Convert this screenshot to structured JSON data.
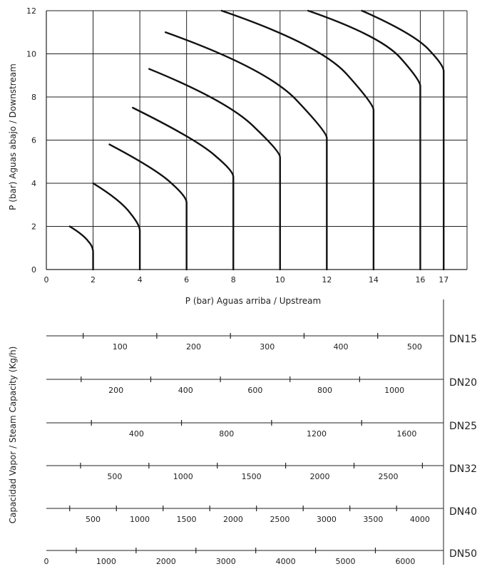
{
  "chart_data": [
    {
      "type": "line",
      "title": "",
      "xlabel": "P (bar)   Aguas arriba / Upstream",
      "ylabel": "P (bar)   Aguas abajo / Downstream",
      "xlim": [
        0,
        18
      ],
      "ylim": [
        0,
        12
      ],
      "x_ticks": [
        "0",
        "2",
        "4",
        "6",
        "8",
        "10",
        "12",
        "14",
        "16",
        "17"
      ],
      "y_ticks": [
        "0",
        "2",
        "4",
        "6",
        "8",
        "10",
        "12"
      ],
      "grid": true,
      "series": [
        {
          "points": [
            [
              1.0,
              2.0
            ],
            [
              1.6,
              1.6
            ],
            [
              2.0,
              1.0
            ],
            [
              2.0,
              0
            ]
          ]
        },
        {
          "points": [
            [
              2.0,
              4.0
            ],
            [
              3.2,
              3.2
            ],
            [
              4.0,
              2.0
            ],
            [
              4.0,
              0
            ]
          ]
        },
        {
          "points": [
            [
              2.7,
              5.8
            ],
            [
              4.8,
              4.6
            ],
            [
              6.0,
              3.3
            ],
            [
              6.0,
              0
            ]
          ]
        },
        {
          "points": [
            [
              3.7,
              7.5
            ],
            [
              6.5,
              6.0
            ],
            [
              8.0,
              4.5
            ],
            [
              8.0,
              0
            ]
          ]
        },
        {
          "points": [
            [
              4.4,
              9.3
            ],
            [
              7.8,
              7.8
            ],
            [
              10.0,
              5.4
            ],
            [
              10.0,
              0
            ]
          ]
        },
        {
          "points": [
            [
              5.1,
              11.0
            ],
            [
              9.5,
              9.3
            ],
            [
              12.0,
              6.3
            ],
            [
              12.0,
              0
            ]
          ]
        },
        {
          "points": [
            [
              7.5,
              12.0
            ],
            [
              11.8,
              10.4
            ],
            [
              14.0,
              7.6
            ],
            [
              14.0,
              0
            ]
          ]
        },
        {
          "points": [
            [
              11.2,
              12.0
            ],
            [
              14.4,
              10.8
            ],
            [
              16.0,
              8.7
            ],
            [
              16.0,
              0
            ]
          ]
        },
        {
          "points": [
            [
              13.5,
              12.0
            ],
            [
              15.8,
              10.9
            ],
            [
              17.0,
              9.4
            ],
            [
              17.0,
              0
            ]
          ]
        }
      ]
    },
    {
      "type": "table",
      "ylabel": "Capacidad Vapor / Steam Capacity (Kg/h)",
      "scales": [
        {
          "name": "DN15",
          "labels": [
            "100",
            "200",
            "300",
            "400",
            "500"
          ],
          "values": [
            100,
            200,
            300,
            400,
            500
          ],
          "max": 520
        },
        {
          "name": "DN20",
          "labels": [
            "200",
            "400",
            "600",
            "800",
            "1000"
          ],
          "values": [
            200,
            400,
            600,
            800,
            1000
          ],
          "max": 1100
        },
        {
          "name": "DN25",
          "labels": [
            "400",
            "800",
            "1200",
            "1600"
          ],
          "values": [
            400,
            800,
            1200,
            1600
          ],
          "max": 1700
        },
        {
          "name": "DN32",
          "labels": [
            "500",
            "1000",
            "1500",
            "2000",
            "2500"
          ],
          "values": [
            500,
            1000,
            1500,
            2000,
            2500
          ],
          "max": 2800
        },
        {
          "name": "DN40",
          "labels": [
            "500",
            "1000",
            "1500",
            "2000",
            "2500",
            "3000",
            "3500",
            "4000"
          ],
          "values": [
            500,
            1000,
            1500,
            2000,
            2500,
            3000,
            3500,
            4000
          ],
          "max": 4100
        },
        {
          "name": "DN50",
          "labels": [
            "0",
            "1000",
            "2000",
            "3000",
            "4000",
            "5000",
            "6000"
          ],
          "values": [
            0,
            1000,
            2000,
            3000,
            4000,
            5000,
            6000
          ],
          "max": 6400
        }
      ]
    }
  ]
}
